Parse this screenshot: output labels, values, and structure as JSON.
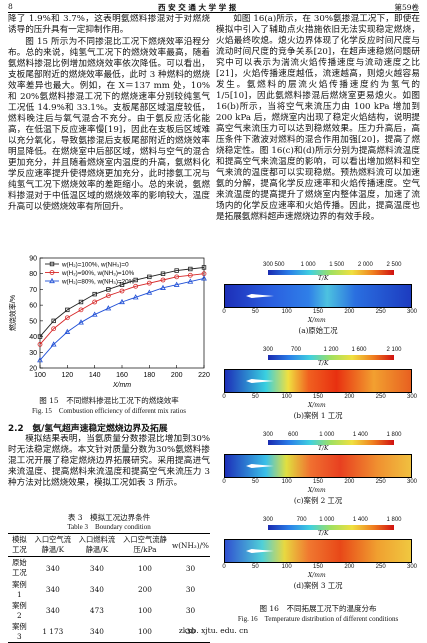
{
  "header": {
    "page": "8",
    "journal": "西 安 交 通 大 学 学 报",
    "volume": "第59卷"
  },
  "left": {
    "paragraphs": [
      "降了 1.9%和 3.7%，这表明氨燃料掺混对于对燃烧诱导的压升具有一定抑制作用。",
      "图 15 所示为不同掺混比工况下燃烧效率沿程分布。总的来说，纯氢气工况下的燃烧效率最高，随着氨燃料掺混比例增加燃烧效率依次降低。可以看出，支板尾部附近的燃烧效率最低，此时 3 种燃料的燃烧效率差异也最大。例如，在 X＝137 mm 处，10%和 20%氨燃料掺混工况下的燃烧速率分别较纯氢气工况低 14.9%和 33.1%。支板尾部区域温度较低，燃料晚注后与氧气混合不充分。由于氨反应活化能高，在低温下反应速率慢[19]，因此在支板后区域难以充分氧化，导致氨掺混后支板尾部附近的燃烧效率明显降低。在燃烧室中后部区域，燃料与空气的混合更加充分，并且随着燃烧室内温度的升高，氨燃料化学反应速率提升使得燃烧更加充分，此时掺氨工况与纯氢气工况下燃烧效率的差距缩小。总的来说，氨燃料掺混对于中低温区域的燃烧效率的影响较大，温度升高可以使燃烧效率有所回升。"
    ]
  },
  "chart_data": {
    "type": "line",
    "xlabel": "X/mm",
    "ylabel": "燃烧效率/%",
    "x": [
      100,
      110,
      120,
      130,
      140,
      150,
      160,
      170,
      180,
      190,
      200,
      210,
      220
    ],
    "series": [
      {
        "name": "w(H₂)=100%, w(NH₃)=0",
        "color": "#222222",
        "values": [
          40,
          50,
          57,
          62,
          67,
          70,
          73,
          76,
          78,
          80,
          82,
          83,
          84
        ]
      },
      {
        "name": "w(H₂)=90%, w(NH₃)=10%",
        "color": "#d62728",
        "values": [
          35,
          45,
          52,
          57,
          62,
          66,
          69,
          72,
          74,
          76,
          78,
          79,
          80
        ]
      },
      {
        "name": "w(H₂)=80%, w(NH₃)=20%",
        "color": "#1f4fd6",
        "values": [
          25,
          35,
          43,
          49,
          54,
          58,
          62,
          65,
          68,
          71,
          73,
          75,
          77
        ]
      }
    ],
    "xlim": [
      100,
      220
    ],
    "xticks": [
      100,
      120,
      140,
      160,
      180,
      200,
      220
    ],
    "ylim": [
      20,
      90
    ],
    "yticks": [
      20,
      30,
      40,
      50,
      60,
      70,
      80,
      90
    ]
  },
  "figure15": {
    "caption_cn": "图 15　不同燃料掺混比工况下的燃烧效率",
    "caption_en": "Fig. 15　Combustion efficiency of different mix ratios"
  },
  "section": {
    "heading": "2.2　氨/氢气超声速稳定燃烧边界及拓展",
    "paragraph": "模拟结果表明，当氨质量分数掺混比增加到30%时无法稳定燃烧。本文针对质量分数为30%氨燃料掺混工况开展了稳定燃烧边界拓展研究。采用提高进气来流温度、提高燃料来流温度和提高空气来流压力 3 种方法对比燃烧效果，模拟工况如表 3 所示。"
  },
  "table3": {
    "title_cn": "表 3　模拟工况边界条件",
    "title_en": "Table 3　Boundary condition",
    "header": [
      "模拟工况",
      "入口空气流静温/K",
      "入口燃料流静温/K",
      "入口空气流静压/kPa",
      "w(NH₃)/%"
    ],
    "rows": [
      [
        "原始工况",
        "340",
        "340",
        "100",
        "30"
      ],
      [
        "案例 1",
        "340",
        "340",
        "200",
        "30"
      ],
      [
        "案例 2",
        "340",
        "473",
        "100",
        "30"
      ],
      [
        "案例 3",
        "1 173",
        "340",
        "100",
        "30"
      ]
    ]
  },
  "right": {
    "paragraph": "如图 16(a)所示，在 30%氨掺混工况下，即使在模拟中引入了辅助点火措施依旧无法实现稳定燃烧，火焰最终吹熄。熄火边界体现了化学反应时间尺度与流动时间尺度的竞争关系[20]，在超声速稳燃问题研究中可以表示为湍流火焰传播速度与流动速度之比[21]，火焰传播速度越低，流速越高，则熄火越容易发生。氨燃料的层流火焰传播速度约为氢气的 1/5[10]，因此氨燃料掺混后燃烧室更易熄火。如图 16(b)所示，当将空气来流压力由 100 kPa 增加到 200 kPa 后，燃烧室内出现了稳定火焰结构，说明提高空气来流压力可以达到稳燃效果。压力升高后，高压条件下激波对燃料的混合作用加强[20]，提高了燃烧稳定性。图 16(c)和(d)所示分别为提高燃料流温度和提高空气来流温度的影响，可以看出增加燃料和空气来流的温度都可以实现稳燃。预热燃料流可以加速氨的分解，提高化学反应速率和火焰传播速度。空气来流温度的提高提升了燃烧室内整体温度，加速了流场内的化学反应速率和火焰传播。因此，提高温度也是拓展氨燃料超声速燃烧边界的有效手段。"
  },
  "figure16": {
    "panels": [
      {
        "colorbar_ticks": [
          300,
          500,
          {
            "value": 1000,
            "label": "1 000"
          },
          {
            "value": 1500,
            "label": "1 500"
          },
          {
            "value": 2000,
            "label": "2 000"
          },
          {
            "value": 2500,
            "label": "2 500"
          }
        ],
        "colorbar_label": "T/K",
        "x_ticks": [
          0,
          50,
          100,
          150,
          200,
          250,
          300
        ],
        "x_label": "X/mm",
        "caption": "(a)原始工况"
      },
      {
        "colorbar_ticks": [
          300,
          700,
          {
            "value": 1200,
            "label": "1 200"
          },
          {
            "value": 1600,
            "label": "1 600"
          },
          {
            "value": 2100,
            "label": "2 100"
          }
        ],
        "colorbar_label": "T/K",
        "x_ticks": [
          0,
          50,
          100,
          150,
          200,
          250,
          300
        ],
        "x_label": "X/mm",
        "caption": "(b)案例 1 工况"
      },
      {
        "colorbar_ticks": [
          300,
          600,
          {
            "value": 1000,
            "label": "1 000"
          },
          {
            "value": 1400,
            "label": "1 400"
          },
          {
            "value": 1800,
            "label": "1 800"
          }
        ],
        "colorbar_label": "T/K",
        "x_ticks": [
          0,
          50,
          100,
          150,
          200,
          250,
          300
        ],
        "x_label": "X/mm",
        "caption": "(c)案例 2 工况"
      },
      {
        "colorbar_ticks": [
          300,
          700,
          {
            "value": 1000,
            "label": "1 000"
          },
          {
            "value": 1400,
            "label": "1 400"
          },
          {
            "value": 1800,
            "label": "1 800"
          }
        ],
        "colorbar_label": "T/K",
        "x_ticks": [
          0,
          50,
          100,
          150,
          200,
          250,
          300
        ],
        "x_label": "X/mm",
        "caption": "(d)案例 3 工况"
      }
    ],
    "caption_cn": "图 16　不同拓展工况下的温度分布",
    "caption_en": "Fig. 16　Temperature distribution of different conditions"
  },
  "footer": "zkxb. xjtu. edu. cn"
}
